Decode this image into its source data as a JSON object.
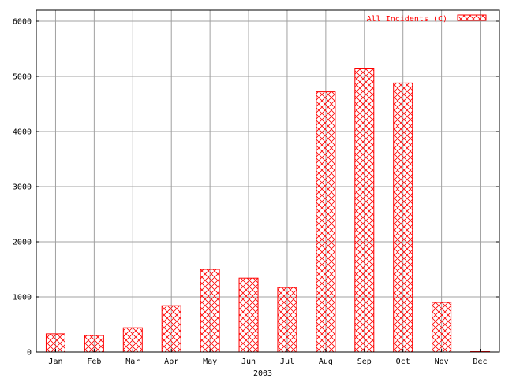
{
  "chart_data": {
    "type": "bar",
    "categories": [
      "Jan",
      "Feb",
      "Mar",
      "Apr",
      "May",
      "Jun",
      "Jul",
      "Aug",
      "Sep",
      "Oct",
      "Nov",
      "Dec"
    ],
    "series": [
      {
        "name": "All Incidents (C)",
        "values": [
          330,
          300,
          440,
          840,
          1500,
          1340,
          1170,
          4720,
          5150,
          4880,
          900,
          0
        ]
      }
    ],
    "title": "",
    "xlabel": "2003",
    "ylabel": "",
    "ylim": [
      0,
      6200
    ],
    "yticks": [
      0,
      1000,
      2000,
      3000,
      4000,
      5000,
      6000
    ],
    "grid": true,
    "legend_position": "top-right",
    "bar_color": "#ff0000",
    "grid_color": "#a0a0a0"
  }
}
